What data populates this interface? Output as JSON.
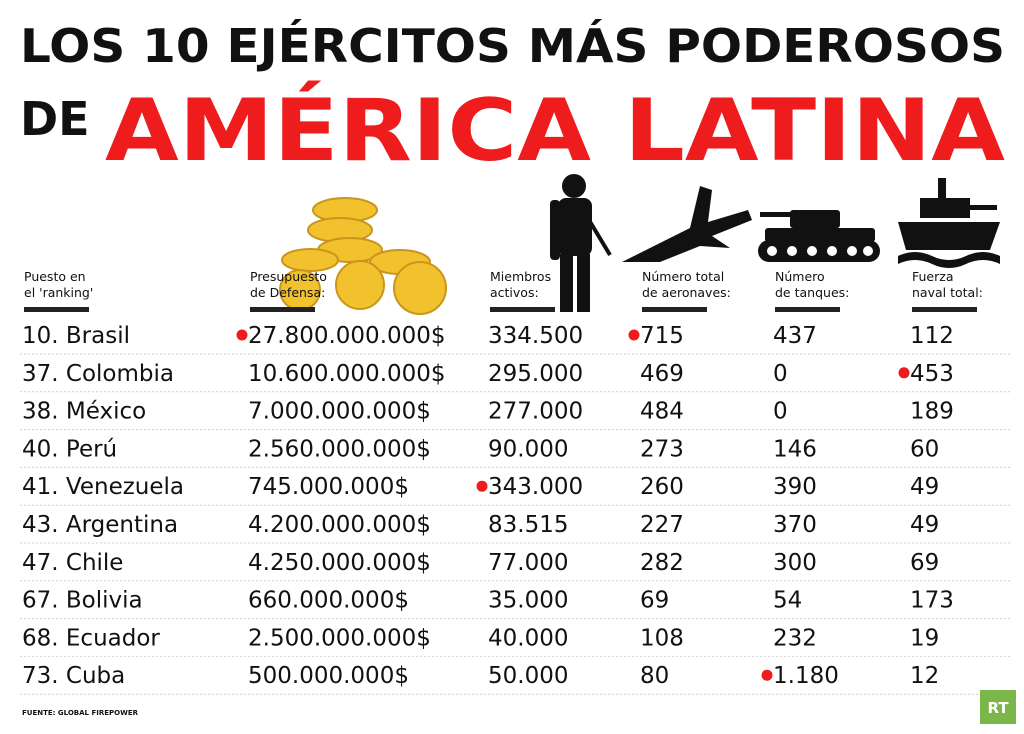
{
  "header": {
    "title_line1": "LOS 10 EJÉRCITOS MÁS PODEROSOS",
    "title_de": "DE",
    "title_highlight": "AMÉRICA LATINA"
  },
  "table": {
    "columns": [
      [
        "Puesto en",
        "el 'ranking'"
      ],
      [
        "Presupuesto",
        "de Defensa:"
      ],
      [
        "Miembros",
        "activos:"
      ],
      [
        "Número total",
        "de aeronaves:"
      ],
      [
        "Número",
        "de tanques:"
      ],
      [
        "Fuerza",
        "naval total:"
      ]
    ],
    "rows": [
      [
        {
          "text": "10. Brasil"
        },
        {
          "text": "27.800.000.000$",
          "highlight": true
        },
        {
          "text": "334.500"
        },
        {
          "text": "715",
          "highlight": true
        },
        {
          "text": "437"
        },
        {
          "text": "112"
        }
      ],
      [
        {
          "text": "37. Colombia"
        },
        {
          "text": "10.600.000.000$"
        },
        {
          "text": "295.000"
        },
        {
          "text": "469"
        },
        {
          "text": "0"
        },
        {
          "text": "453",
          "highlight": true
        }
      ],
      [
        {
          "text": "38. México"
        },
        {
          "text": "7.000.000.000$"
        },
        {
          "text": "277.000"
        },
        {
          "text": "484"
        },
        {
          "text": "0"
        },
        {
          "text": "189"
        }
      ],
      [
        {
          "text": "40. Perú"
        },
        {
          "text": "2.560.000.000$"
        },
        {
          "text": "90.000"
        },
        {
          "text": "273"
        },
        {
          "text": "146"
        },
        {
          "text": "60"
        }
      ],
      [
        {
          "text": "41. Venezuela"
        },
        {
          "text": "745.000.000$"
        },
        {
          "text": "343.000",
          "highlight": true
        },
        {
          "text": "260"
        },
        {
          "text": "390"
        },
        {
          "text": "49"
        }
      ],
      [
        {
          "text": "43. Argentina"
        },
        {
          "text": "4.200.000.000$"
        },
        {
          "text": "83.515"
        },
        {
          "text": "227"
        },
        {
          "text": "370"
        },
        {
          "text": "49"
        }
      ],
      [
        {
          "text": "47. Chile"
        },
        {
          "text": "4.250.000.000$"
        },
        {
          "text": "77.000"
        },
        {
          "text": "282"
        },
        {
          "text": "300"
        },
        {
          "text": "69"
        }
      ],
      [
        {
          "text": "67. Bolivia"
        },
        {
          "text": "660.000.000$"
        },
        {
          "text": "35.000"
        },
        {
          "text": "69"
        },
        {
          "text": "54"
        },
        {
          "text": "173"
        }
      ],
      [
        {
          "text": "68. Ecuador"
        },
        {
          "text": "2.500.000.000$"
        },
        {
          "text": "40.000"
        },
        {
          "text": "108"
        },
        {
          "text": "232"
        },
        {
          "text": "19"
        }
      ],
      [
        {
          "text": "73. Cuba"
        },
        {
          "text": "500.000.000$"
        },
        {
          "text": "50.000"
        },
        {
          "text": "80"
        },
        {
          "text": "1.180",
          "highlight": true
        },
        {
          "text": "12"
        }
      ]
    ]
  },
  "footer": {
    "source": "FUENTE: GLOBAL FIREPOWER",
    "logo": "RT"
  }
}
